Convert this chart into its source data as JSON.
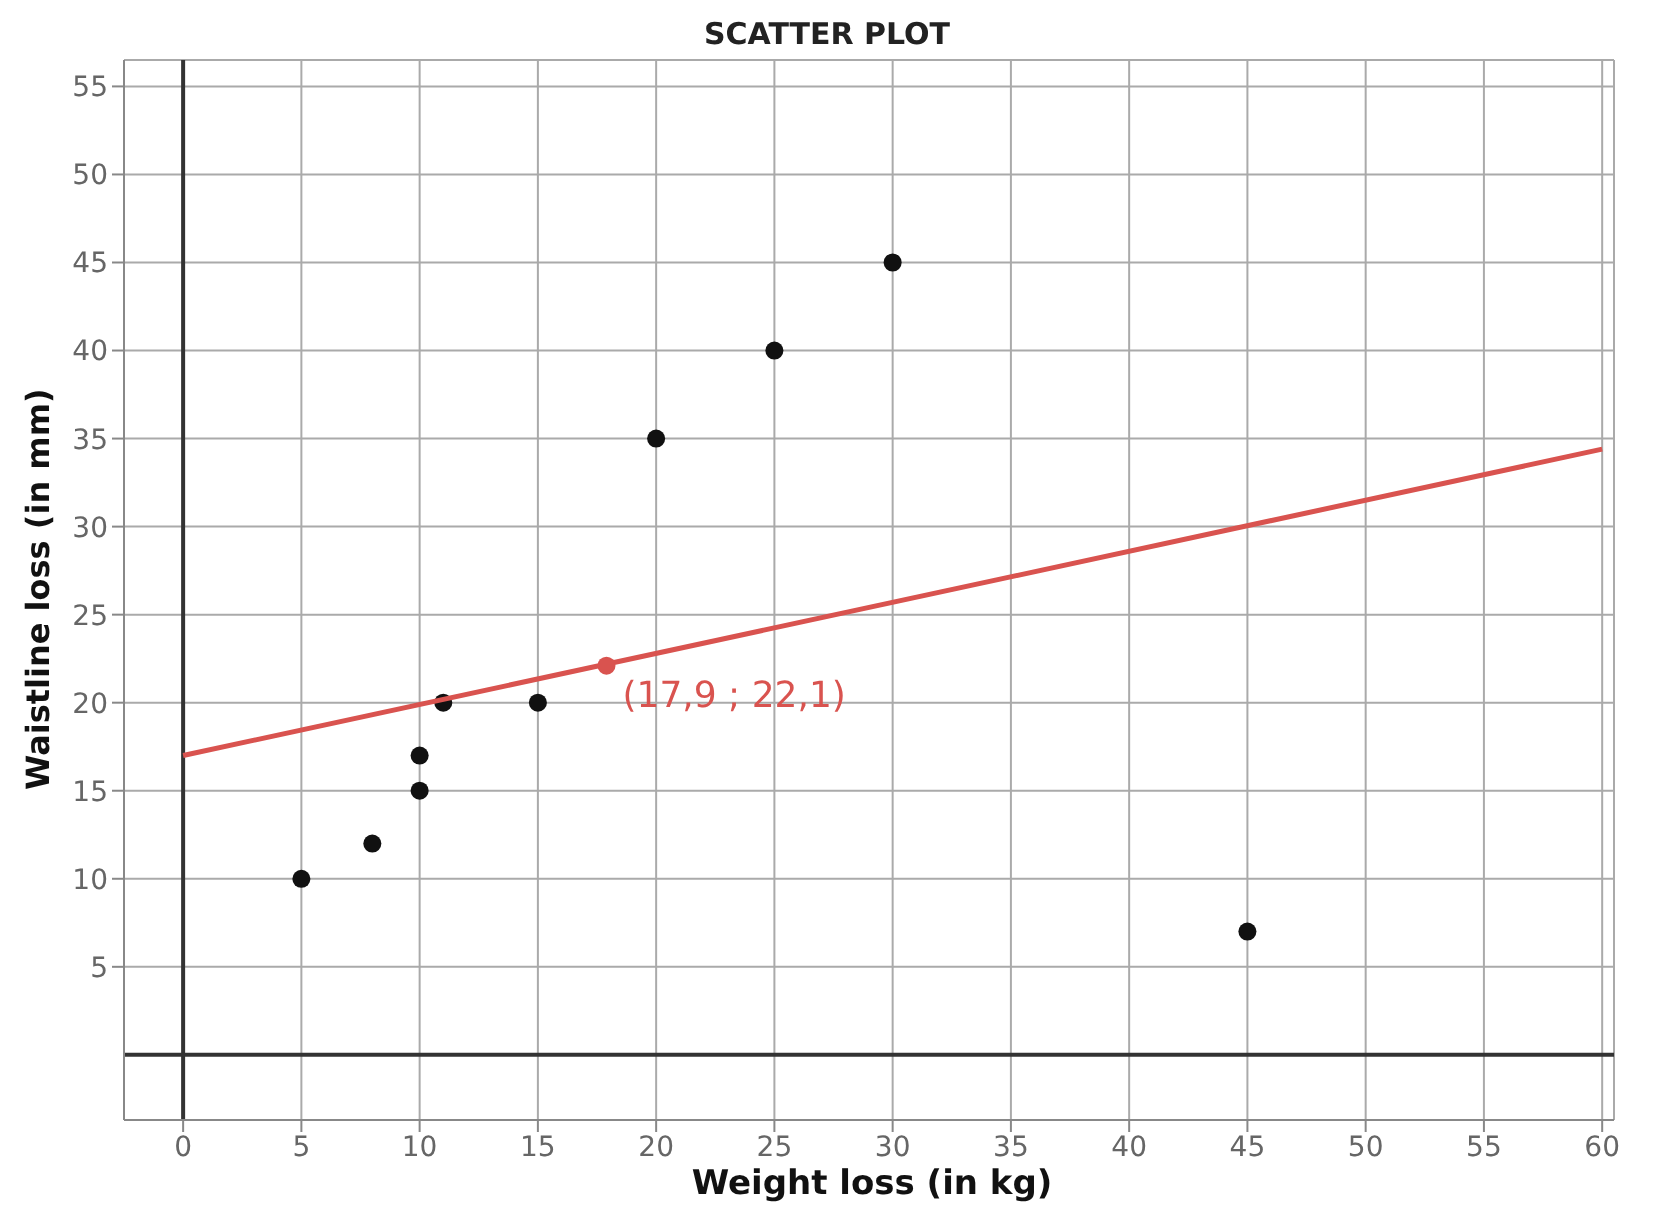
{
  "chart_data": {
    "type": "scatter",
    "title": "SCATTER PLOT",
    "xlabel": "Weight loss (in kg)",
    "ylabel": "Waistline loss (in mm)",
    "xlim": [
      -2.5,
      60.5
    ],
    "xticks": [
      0,
      5,
      10,
      15,
      20,
      25,
      30,
      35,
      40,
      45,
      50,
      55,
      60
    ],
    "ylim": [
      -3.7,
      56.5
    ],
    "yticks": [
      5,
      10,
      15,
      20,
      25,
      30,
      35,
      40,
      45,
      50,
      55
    ],
    "grid": true,
    "marker": "circle",
    "series": [
      {
        "color": "#111111",
        "x": [
          5,
          8,
          10,
          10,
          11,
          15,
          20,
          25,
          30,
          45
        ],
        "values": [
          10,
          12,
          15,
          17,
          20,
          20,
          35,
          40,
          45,
          7
        ]
      },
      {
        "type": "line",
        "marker": "none",
        "color": "#d9534f",
        "x": [
          0,
          60
        ],
        "values": [
          17,
          34.4
        ]
      },
      {
        "color": "#d9534f",
        "x": [
          17.9
        ],
        "values": [
          22.1
        ]
      }
    ],
    "annotations": [
      {
        "text": "(17,9 ; 22,1)",
        "x": 17.9,
        "y": 22.1
      }
    ]
  }
}
